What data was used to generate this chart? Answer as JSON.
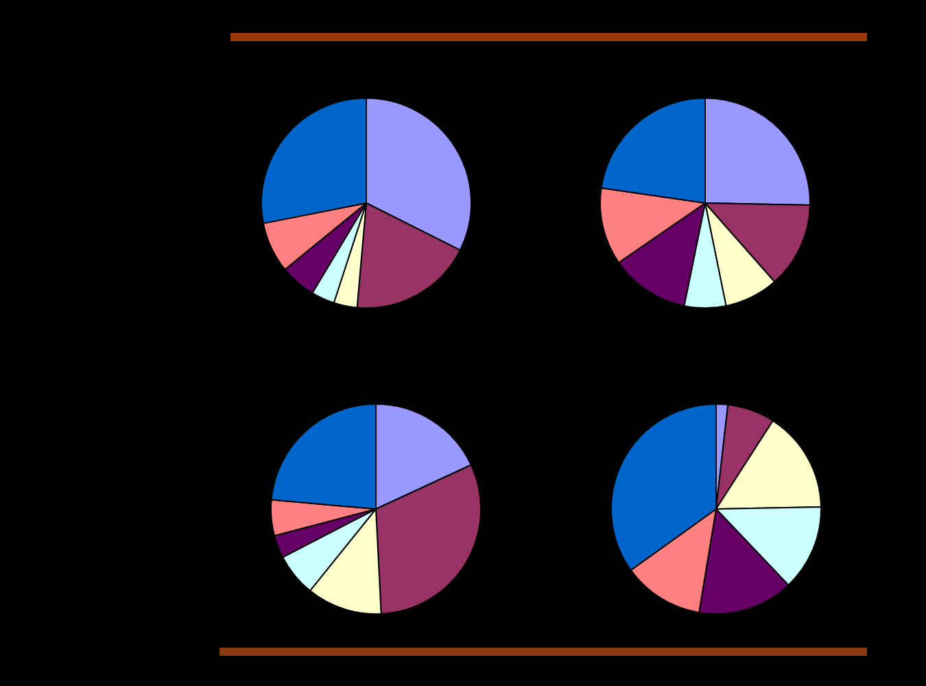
{
  "chart_data": [
    {
      "type": "pie",
      "categories": [
        null,
        null,
        null,
        null,
        null,
        null,
        null
      ],
      "values": [
        32.4,
        19.0,
        3.6,
        3.6,
        5.5,
        7.8,
        28.1
      ],
      "colors": [
        "#9999ff",
        "#993366",
        "#ffffcc",
        "#ccffff",
        "#660066",
        "#ff8080",
        "#0066cc"
      ]
    },
    {
      "type": "pie",
      "categories": [
        null,
        null,
        null,
        null,
        null,
        null,
        null
      ],
      "values": [
        25.3,
        13.2,
        8.3,
        6.4,
        12.2,
        11.9,
        22.7
      ],
      "colors": [
        "#9999ff",
        "#993366",
        "#ffffcc",
        "#ccffff",
        "#660066",
        "#ff8080",
        "#0066cc"
      ]
    },
    {
      "type": "pie",
      "categories": [
        null,
        null,
        null,
        null,
        null,
        null,
        null
      ],
      "values": [
        18.1,
        31.1,
        11.6,
        6.6,
        3.5,
        5.5,
        23.6
      ],
      "colors": [
        "#9999ff",
        "#993366",
        "#ffffcc",
        "#ccffff",
        "#660066",
        "#ff8080",
        "#0066cc"
      ]
    },
    {
      "type": "pie",
      "categories": [
        null,
        null,
        null,
        null,
        null,
        null,
        null
      ],
      "values": [
        1.8,
        7.3,
        15.6,
        13.2,
        14.7,
        12.5,
        34.9
      ],
      "colors": [
        "#9999ff",
        "#993366",
        "#ffffcc",
        "#ccffff",
        "#660066",
        "#ff8080",
        "#0066cc"
      ]
    }
  ]
}
